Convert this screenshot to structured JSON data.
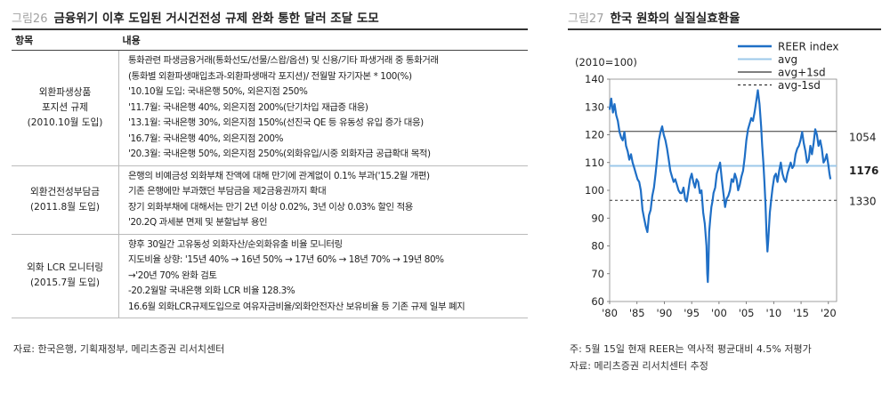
{
  "left_figure": {
    "number": "그림26",
    "title": "금융위기 이후 도입된 거시건전성 규제 완화 통한 달러 조달 도모",
    "columns": [
      "항목",
      "내용"
    ],
    "rows": [
      {
        "item": [
          "외환파생상품",
          "포지션 규제",
          "(2010.10월 도입)"
        ],
        "lines": [
          "통화관련 파생금융거래(통화선도/선물/스왑/옵션) 및 신용/기타 파생거래 중 통화거래",
          "(통화별 외환파생매입초과-외환파생매각 포지션)/ 전월말 자기자본 * 100(%)",
          "'10.10월 도입: 국내은행 50%, 외은지점 250%",
          "'11.7월: 국내은행 40%, 외은지점 200%(단기차입 재급증 대응)",
          "'13.1월: 국내은행 30%, 외은지점 150%(선진국 QE 등 유동성 유입 증가 대응)",
          "'16.7월: 국내은행 40%, 외은지점 200%",
          "'20.3월: 국내은행 50%, 외은지점 250%(외화유입/시중 외화자금 공급확대 목적)"
        ]
      },
      {
        "item": [
          "외환건전성부담금",
          "(2011.8월 도입)"
        ],
        "lines": [
          "은행의 비예금성 외화부채 잔액에 대해 만기에 관계없이 0.1% 부과('15.2월 개편)",
          "기존 은행에만 부과했던 부담금을 제2금융권까지 확대",
          "장기 외화부채에 대해서는 만기 2년 이상 0.02%, 3년 이상 0.03% 할인 적용",
          "'20.2Q 과세분 면제 및 분할납부 용인"
        ]
      },
      {
        "item": [
          "외화 LCR 모니터링",
          "(2015.7월 도입)"
        ],
        "lines": [
          "향후 30일간 고유동성 외화자산/순외화유출 비율 모니터링",
          "지도비율 상향: '15년 40% → 16년 50% → 17년 60% → 18년 70% → 19년 80%",
          "→'20년 70% 완화 검토",
          "-20.2월말 국내은행 외화 LCR 비율 128.3%",
          "16.6월 외화LCR규제도입으로 여유자금비율/외화안전자산 보유비율 등 기존 규제 일부 폐지"
        ]
      }
    ],
    "source": "자료: 한국은행, 기획재정부, 메리츠증권 리서치센터"
  },
  "right_figure": {
    "number": "그림27",
    "title": "한국 원화의 실질실효환율",
    "note": "주: 5월 15일 현재 REER는 역사적 평균대비 4.5% 저평가",
    "source": "자료: 메리츠증권 리서치센터 추정"
  },
  "chart_data": {
    "type": "line",
    "unit_label": "(2010=100)",
    "x_tick_labels": [
      "'80",
      "'85",
      "'90",
      "'95",
      "'00",
      "'05",
      "'10",
      "'15",
      "'20"
    ],
    "x_ticks": [
      1980,
      1985,
      1990,
      1995,
      2000,
      2005,
      2010,
      2015,
      2020
    ],
    "xlim": [
      1980,
      2021.5
    ],
    "ylim": [
      60,
      140
    ],
    "y_ticks": [
      60,
      70,
      80,
      90,
      100,
      110,
      120,
      130,
      140
    ],
    "legend_position": "top-right",
    "legend": [
      "REER index",
      "avg",
      "avg+1sd",
      "avg-1sd"
    ],
    "colors": {
      "reer": "#1f6fc6",
      "avg": "#9cc8ea",
      "sd": "#333333"
    },
    "reference_lines": {
      "avg": 108.8,
      "avg_plus_1sd": 121.2,
      "avg_minus_1sd": 96.4
    },
    "right_labels": [
      {
        "text": "1054",
        "y": 119,
        "bold": false
      },
      {
        "text": "1176",
        "y": 107,
        "bold": true
      },
      {
        "text": "1330",
        "y": 96,
        "bold": false
      }
    ],
    "series": [
      {
        "name": "REER index",
        "x": [
          1980.0,
          1980.3,
          1980.6,
          1980.9,
          1981.2,
          1981.5,
          1981.8,
          1982.1,
          1982.4,
          1982.7,
          1983.0,
          1983.3,
          1983.6,
          1983.9,
          1984.2,
          1984.5,
          1984.8,
          1985.1,
          1985.4,
          1985.7,
          1986.0,
          1986.3,
          1986.6,
          1986.9,
          1987.2,
          1987.5,
          1987.8,
          1988.1,
          1988.4,
          1988.7,
          1989.0,
          1989.3,
          1989.6,
          1989.9,
          1990.2,
          1990.5,
          1990.8,
          1991.1,
          1991.4,
          1991.7,
          1992.0,
          1992.3,
          1992.6,
          1992.9,
          1993.2,
          1993.5,
          1993.8,
          1994.1,
          1994.4,
          1994.7,
          1995.0,
          1995.3,
          1995.6,
          1995.9,
          1996.2,
          1996.5,
          1996.8,
          1997.1,
          1997.4,
          1997.7,
          1997.85,
          1997.95,
          1998.05,
          1998.2,
          1998.4,
          1998.6,
          1998.8,
          1999.0,
          1999.3,
          1999.6,
          1999.9,
          2000.2,
          2000.5,
          2000.8,
          2001.1,
          2001.4,
          2001.7,
          2002.0,
          2002.3,
          2002.6,
          2002.9,
          2003.2,
          2003.5,
          2003.8,
          2004.1,
          2004.4,
          2004.7,
          2005.0,
          2005.3,
          2005.6,
          2005.9,
          2006.2,
          2006.5,
          2006.8,
          2007.1,
          2007.4,
          2007.7,
          2007.9,
          2008.1,
          2008.3,
          2008.5,
          2008.7,
          2008.85,
          2009.0,
          2009.15,
          2009.3,
          2009.5,
          2009.8,
          2010.1,
          2010.4,
          2010.7,
          2011.0,
          2011.3,
          2011.6,
          2011.9,
          2012.2,
          2012.5,
          2012.8,
          2013.1,
          2013.4,
          2013.7,
          2014.0,
          2014.3,
          2014.6,
          2014.9,
          2015.2,
          2015.5,
          2015.8,
          2016.1,
          2016.4,
          2016.7,
          2017.0,
          2017.3,
          2017.6,
          2017.9,
          2018.2,
          2018.5,
          2018.8,
          2019.1,
          2019.4,
          2019.7,
          2020.0,
          2020.2,
          2020.37
        ],
        "values": [
          129,
          133,
          128,
          131,
          127,
          125,
          121,
          119,
          118,
          121,
          116,
          114,
          111,
          113,
          110,
          108,
          106,
          104,
          103,
          100,
          93,
          90,
          87,
          85,
          91,
          93,
          98,
          101,
          106,
          112,
          118,
          121,
          123,
          120,
          118,
          115,
          111,
          107,
          105,
          103,
          104,
          102,
          100,
          99,
          99,
          101,
          97,
          96,
          100,
          104,
          106,
          103,
          101,
          104,
          103,
          99,
          100,
          92,
          88,
          80,
          70,
          67,
          72,
          85,
          90,
          94,
          96,
          99,
          101,
          106,
          108,
          110,
          104,
          99,
          94,
          97,
          98,
          100,
          104,
          103,
          106,
          104,
          100,
          102,
          105,
          107,
          112,
          118,
          122,
          124,
          126,
          125,
          128,
          132,
          136,
          131,
          123,
          116,
          110,
          103,
          95,
          84,
          78,
          82,
          87,
          92,
          96,
          101,
          105,
          106,
          103,
          107,
          110,
          106,
          104,
          103,
          106,
          108,
          110,
          108,
          109,
          113,
          115,
          116,
          118,
          121,
          117,
          114,
          110,
          111,
          116,
          113,
          117,
          122,
          120,
          116,
          118,
          115,
          110,
          111,
          113,
          109,
          106,
          104
        ]
      }
    ]
  }
}
